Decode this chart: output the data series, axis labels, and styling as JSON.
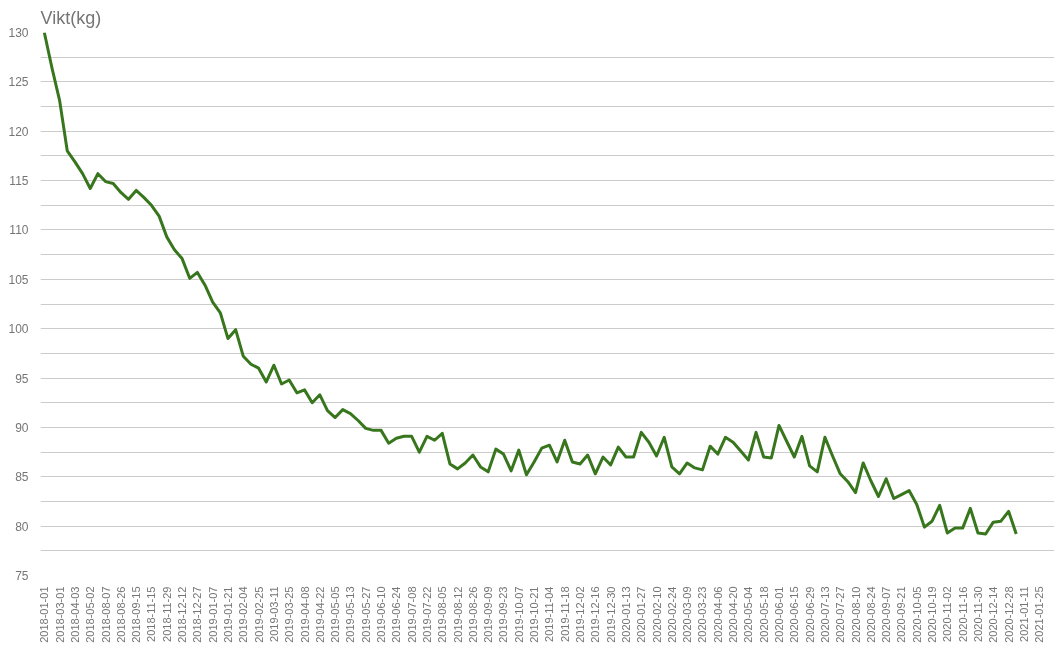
{
  "chart_data": {
    "type": "line",
    "title": "Vikt(kg)",
    "categories": [
      "2018-01-01",
      null,
      "2018-03-01",
      null,
      "2018-04-03",
      null,
      "2018-05-02",
      null,
      "2018-08-07",
      null,
      "2018-08-26",
      null,
      "2018-09-15",
      null,
      "2018-11-15",
      null,
      "2018-11-29",
      null,
      "2018-12-12",
      null,
      "2018-12-27",
      null,
      "2019-01-07",
      null,
      "2019-01-21",
      null,
      "2019-02-04",
      null,
      "2019-02-25",
      null,
      "2019-03-11",
      null,
      "2019-03-25",
      null,
      "2019-04-08",
      null,
      "2019-04-22",
      null,
      "2019-05-05",
      null,
      "2019-05-13",
      null,
      "2019-05-27",
      null,
      "2019-06-10",
      null,
      "2019-06-24",
      null,
      "2019-07-08",
      null,
      "2019-07-22",
      null,
      "2019-08-05",
      null,
      "2019-08-12",
      null,
      "2019-08-26",
      null,
      "2019-09-09",
      null,
      "2019-09-23",
      null,
      "2019-10-07",
      null,
      "2019-10-21",
      null,
      "2019-11-04",
      null,
      "2019-11-18",
      null,
      "2019-12-02",
      null,
      "2019-12-16",
      null,
      "2019-12-30",
      null,
      "2020-01-13",
      null,
      "2020-01-27",
      null,
      "2020-02-10",
      null,
      "2020-02-24",
      null,
      "2020-03-09",
      null,
      "2020-03-23",
      null,
      "2020-04-06",
      null,
      "2020-04-20",
      null,
      "2020-05-04",
      null,
      "2020-05-18",
      null,
      "2020-06-01",
      null,
      "2020-06-15",
      null,
      "2020-06-29",
      null,
      "2020-07-13",
      null,
      "2020-07-27",
      null,
      "2020-08-10",
      null,
      "2020-08-24",
      null,
      "2020-09-07",
      null,
      "2020-09-21",
      null,
      "2020-10-05",
      null,
      "2020-10-19",
      null,
      "2020-11-02",
      null,
      "2020-11-16",
      null,
      "2020-11-30",
      null,
      "2020-12-14",
      null,
      "2020-12-28",
      null,
      "2021-01-11",
      null,
      "2021-01-25"
    ],
    "series": [
      {
        "color": "#38761d",
        "values": [
          130,
          126.4,
          123.1,
          118.0,
          116.9,
          115.7,
          114.2,
          115.7,
          114.9,
          114.7,
          113.8,
          113.1,
          114.0,
          113.3,
          112.5,
          111.4,
          109.3,
          108.0,
          107.1,
          105.1,
          105.7,
          104.4,
          102.7,
          101.6,
          99.0,
          99.9,
          97.2,
          96.4,
          96.0,
          94.6,
          96.3,
          94.4,
          94.8,
          93.5,
          93.8,
          92.5,
          93.3,
          91.7,
          91.0,
          91.8,
          91.4,
          90.7,
          89.9,
          89.7,
          89.7,
          88.4,
          88.9,
          89.1,
          89.1,
          87.5,
          89.1,
          88.7,
          89.4,
          86.3,
          85.8,
          86.4,
          87.2,
          86.0,
          85.5,
          87.8,
          87.3,
          85.6,
          87.7,
          85.2,
          86.5,
          87.9,
          88.2,
          86.5,
          88.7,
          86.5,
          86.3,
          87.2,
          85.3,
          87.0,
          86.2,
          88.0,
          87.0,
          87.0,
          89.5,
          88.5,
          87.1,
          89.0,
          86.0,
          85.3,
          86.4,
          85.9,
          85.7,
          88.1,
          87.3,
          89.0,
          88.5,
          87.6,
          86.7,
          89.5,
          87.0,
          86.9,
          90.2,
          88.6,
          87.0,
          89.1,
          86.1,
          85.5,
          89.0,
          87.1,
          85.3,
          84.5,
          83.4,
          86.4,
          84.6,
          83.0,
          84.8,
          82.8,
          83.2,
          83.6,
          82.2,
          79.9,
          80.5,
          82.1,
          79.3,
          79.8,
          79.8,
          81.8,
          79.3,
          79.2,
          80.4,
          80.5,
          81.5,
          79.2,
          null,
          null,
          null
        ]
      }
    ],
    "ylim": [
      75,
      130
    ],
    "yticks": [
      75,
      {
        "value": 77.5,
        "label": null
      },
      80,
      {
        "value": 82.5,
        "label": null
      },
      85,
      {
        "value": 87.5,
        "label": null
      },
      90,
      {
        "value": 92.5,
        "label": null
      },
      95,
      {
        "value": 97.5,
        "label": null
      },
      100,
      {
        "value": 102.5,
        "label": null
      },
      105,
      {
        "value": 107.5,
        "label": null
      },
      110,
      {
        "value": 112.5,
        "label": null
      },
      115,
      {
        "value": 117.5,
        "label": null
      },
      120,
      {
        "value": 122.5,
        "label": null
      },
      125,
      {
        "value": 127.5,
        "label": null
      },
      130
    ],
    "grid": "y",
    "marker": "none",
    "line_style": "solid"
  }
}
